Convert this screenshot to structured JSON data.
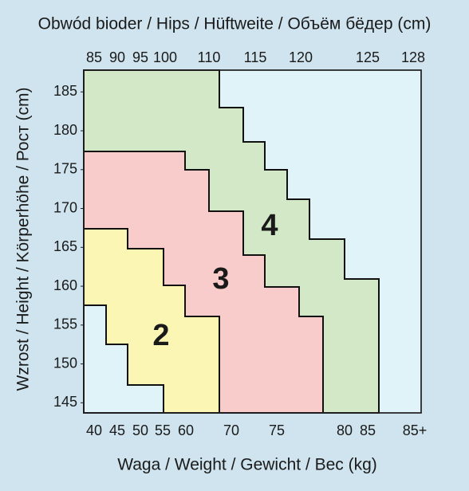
{
  "chart_data": {
    "type": "size-chart",
    "title": "Obwód bioder / Hips / Hüftweite / Объём бёдер (cm)",
    "x_label": "Waga / Weight / Gewicht / Вес (kg)",
    "y_label": "Wzrost / Height / Körperhöhe / Рост (cm)",
    "top_categories": [
      85,
      90,
      95,
      100,
      110,
      115,
      120,
      125,
      128
    ],
    "categories": [
      40,
      45,
      50,
      55,
      60,
      70,
      75,
      80,
      85,
      "85+"
    ],
    "ylim": [
      143.7,
      187.8
    ],
    "yticks": [
      145,
      150,
      155,
      160,
      165,
      170,
      175,
      180,
      185
    ],
    "zones": [
      {
        "name": "4",
        "color": "#d2e8c6"
      },
      {
        "name": "3",
        "color": "#f7cccb"
      },
      {
        "name": "2",
        "color": "#fbf6b4"
      }
    ]
  }
}
